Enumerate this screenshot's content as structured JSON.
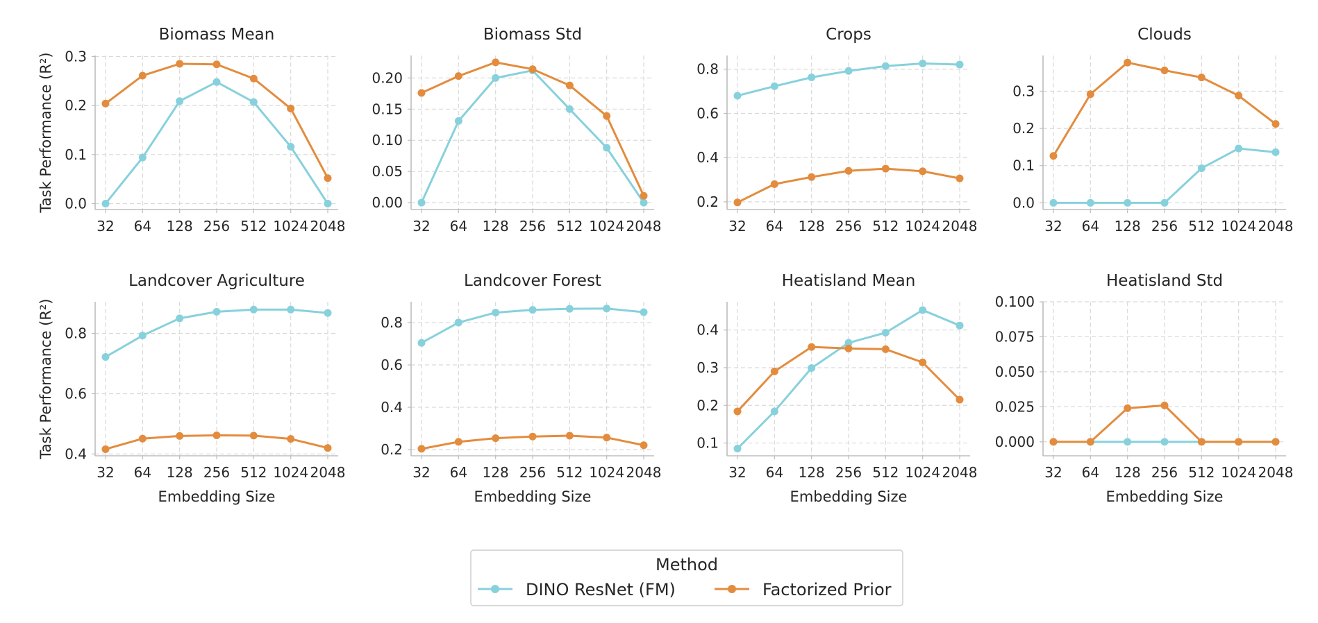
{
  "colors": {
    "dino": "#87d1dc",
    "prior": "#e38c3e"
  },
  "legend": {
    "title": "Method",
    "entries": [
      "DINO ResNet (FM)",
      "Factorized Prior"
    ]
  },
  "chart_data": [
    {
      "type": "line",
      "title": "Biomass Mean",
      "xlabel": "",
      "ylabel": "Task Performance (R²)",
      "categories": [
        "32",
        "64",
        "128",
        "256",
        "512",
        "1024",
        "2048"
      ],
      "yticks": [
        "0.0",
        "0.1",
        "0.2",
        "0.3"
      ],
      "ytick_values": [
        0,
        0.1,
        0.2,
        0.3
      ],
      "ylim": [
        -0.012,
        0.302
      ],
      "series": [
        {
          "name": "DINO ResNet (FM)",
          "values": [
            0.0,
            0.094,
            0.209,
            0.248,
            0.207,
            0.116,
            0.0
          ]
        },
        {
          "name": "Factorized Prior",
          "values": [
            0.204,
            0.261,
            0.285,
            0.284,
            0.255,
            0.194,
            0.052
          ]
        }
      ]
    },
    {
      "type": "line",
      "title": "Biomass Std",
      "xlabel": "",
      "ylabel": "",
      "categories": [
        "32",
        "64",
        "128",
        "256",
        "512",
        "1024",
        "2048"
      ],
      "yticks": [
        "0.00",
        "0.05",
        "0.10",
        "0.15",
        "0.20"
      ],
      "ytick_values": [
        0,
        0.05,
        0.1,
        0.15,
        0.2
      ],
      "ylim": [
        -0.011,
        0.236
      ],
      "series": [
        {
          "name": "DINO ResNet (FM)",
          "values": [
            0.0,
            0.131,
            0.2,
            0.212,
            0.15,
            0.088,
            0.0
          ]
        },
        {
          "name": "Factorized Prior",
          "values": [
            0.176,
            0.203,
            0.225,
            0.214,
            0.188,
            0.139,
            0.011
          ]
        }
      ]
    },
    {
      "type": "line",
      "title": "Crops",
      "xlabel": "",
      "ylabel": "",
      "categories": [
        "32",
        "64",
        "128",
        "256",
        "512",
        "1024",
        "2048"
      ],
      "yticks": [
        "0.2",
        "0.4",
        "0.6",
        "0.8"
      ],
      "ytick_values": [
        0.2,
        0.4,
        0.6,
        0.8
      ],
      "ylim": [
        0.165,
        0.862
      ],
      "series": [
        {
          "name": "DINO ResNet (FM)",
          "values": [
            0.68,
            0.723,
            0.763,
            0.792,
            0.814,
            0.826,
            0.821
          ]
        },
        {
          "name": "Factorized Prior",
          "values": [
            0.197,
            0.28,
            0.312,
            0.34,
            0.35,
            0.338,
            0.306
          ]
        }
      ]
    },
    {
      "type": "line",
      "title": "Clouds",
      "xlabel": "",
      "ylabel": "",
      "categories": [
        "32",
        "64",
        "128",
        "256",
        "512",
        "1024",
        "2048"
      ],
      "yticks": [
        "0.0",
        "0.1",
        "0.2",
        "0.3"
      ],
      "ytick_values": [
        0,
        0.1,
        0.2,
        0.3
      ],
      "ylim": [
        -0.018,
        0.396
      ],
      "series": [
        {
          "name": "DINO ResNet (FM)",
          "values": [
            0.0,
            0.0,
            0.0,
            0.0,
            0.093,
            0.146,
            0.136
          ]
        },
        {
          "name": "Factorized Prior",
          "values": [
            0.126,
            0.292,
            0.377,
            0.356,
            0.337,
            0.288,
            0.212
          ]
        }
      ]
    },
    {
      "type": "line",
      "title": "Landcover Agriculture",
      "xlabel": "Embedding Size",
      "ylabel": "Task Performance (R²)",
      "categories": [
        "32",
        "64",
        "128",
        "256",
        "512",
        "1024",
        "2048"
      ],
      "yticks": [
        "0.4",
        "0.6",
        "0.8"
      ],
      "ytick_values": [
        0.4,
        0.6,
        0.8
      ],
      "ylim": [
        0.394,
        0.905
      ],
      "series": [
        {
          "name": "DINO ResNet (FM)",
          "values": [
            0.722,
            0.793,
            0.85,
            0.872,
            0.879,
            0.879,
            0.868
          ]
        },
        {
          "name": "Factorized Prior",
          "values": [
            0.416,
            0.451,
            0.46,
            0.462,
            0.461,
            0.45,
            0.42
          ]
        }
      ]
    },
    {
      "type": "line",
      "title": "Landcover Forest",
      "xlabel": "Embedding Size",
      "ylabel": "",
      "categories": [
        "32",
        "64",
        "128",
        "256",
        "512",
        "1024",
        "2048"
      ],
      "yticks": [
        "0.2",
        "0.4",
        "0.6",
        "0.8"
      ],
      "ytick_values": [
        0.2,
        0.4,
        0.6,
        0.8
      ],
      "ylim": [
        0.171,
        0.898
      ],
      "series": [
        {
          "name": "DINO ResNet (FM)",
          "values": [
            0.704,
            0.8,
            0.847,
            0.86,
            0.865,
            0.866,
            0.849
          ]
        },
        {
          "name": "Factorized Prior",
          "values": [
            0.204,
            0.237,
            0.254,
            0.262,
            0.266,
            0.257,
            0.221
          ]
        }
      ]
    },
    {
      "type": "line",
      "title": "Heatisland Mean",
      "xlabel": "Embedding Size",
      "ylabel": "",
      "categories": [
        "32",
        "64",
        "128",
        "256",
        "512",
        "1024",
        "2048"
      ],
      "yticks": [
        "0.1",
        "0.2",
        "0.3",
        "0.4"
      ],
      "ytick_values": [
        0.1,
        0.2,
        0.3,
        0.4
      ],
      "ylim": [
        0.066,
        0.475
      ],
      "series": [
        {
          "name": "DINO ResNet (FM)",
          "values": [
            0.085,
            0.184,
            0.299,
            0.366,
            0.393,
            0.453,
            0.412
          ]
        },
        {
          "name": "Factorized Prior",
          "values": [
            0.184,
            0.29,
            0.355,
            0.351,
            0.349,
            0.314,
            0.215
          ]
        }
      ]
    },
    {
      "type": "line",
      "title": "Heatisland Std",
      "xlabel": "Embedding Size",
      "ylabel": "",
      "categories": [
        "32",
        "64",
        "128",
        "256",
        "512",
        "1024",
        "2048"
      ],
      "yticks": [
        "0.000",
        "0.025",
        "0.050",
        "0.075",
        "0.100"
      ],
      "ytick_values": [
        0,
        0.025,
        0.05,
        0.075,
        0.1
      ],
      "ylim": [
        -0.01,
        0.1
      ],
      "series": [
        {
          "name": "DINO ResNet (FM)",
          "values": [
            0.0,
            0.0,
            0.0,
            0.0,
            0.0,
            0.0,
            0.0
          ]
        },
        {
          "name": "Factorized Prior",
          "values": [
            0.0,
            0.0,
            0.024,
            0.026,
            0.0,
            0.0,
            0.0
          ]
        }
      ]
    }
  ]
}
